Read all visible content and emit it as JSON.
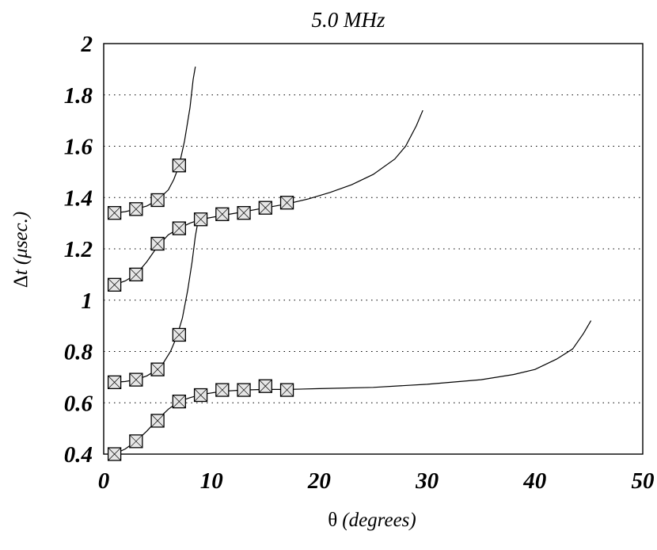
{
  "chart_data": {
    "type": "scatter",
    "title": "5.0 MHz",
    "xlabel": {
      "symbol": "θ",
      "text": "(degrees)"
    },
    "ylabel": {
      "symbol": "Δ",
      "var": "t",
      "unit": "(μsec.)"
    },
    "xlim": [
      0,
      50
    ],
    "ylim": [
      0.4,
      2
    ],
    "xticks": [
      "0",
      "10",
      "20",
      "30",
      "40",
      "50"
    ],
    "yticks": [
      "0.4",
      "0.6",
      "0.8",
      "1",
      "1.2",
      "1.4",
      "1.6",
      "1.8",
      "2"
    ],
    "grid": "horizontal-dotted",
    "series": [
      {
        "points": [
          [
            1,
            1.34
          ],
          [
            3,
            1.355
          ],
          [
            5,
            1.39
          ],
          [
            7,
            1.525
          ]
        ],
        "curve": [
          [
            1,
            1.34
          ],
          [
            2,
            1.345
          ],
          [
            3,
            1.355
          ],
          [
            4,
            1.367
          ],
          [
            5,
            1.39
          ],
          [
            6,
            1.43
          ],
          [
            6.5,
            1.47
          ],
          [
            7,
            1.525
          ],
          [
            7.5,
            1.62
          ],
          [
            8,
            1.75
          ],
          [
            8.3,
            1.86
          ],
          [
            8.5,
            1.91
          ]
        ]
      },
      {
        "points": [
          [
            1,
            1.06
          ],
          [
            3,
            1.1
          ],
          [
            5,
            1.22
          ],
          [
            7,
            1.28
          ],
          [
            9,
            1.315
          ],
          [
            11,
            1.335
          ],
          [
            13,
            1.34
          ],
          [
            15,
            1.36
          ],
          [
            17,
            1.38
          ]
        ],
        "curve": [
          [
            1,
            1.06
          ],
          [
            2,
            1.075
          ],
          [
            3,
            1.1
          ],
          [
            4,
            1.15
          ],
          [
            5,
            1.21
          ],
          [
            6,
            1.255
          ],
          [
            7,
            1.28
          ],
          [
            8,
            1.3
          ],
          [
            9,
            1.315
          ],
          [
            11,
            1.33
          ],
          [
            13,
            1.345
          ],
          [
            15,
            1.36
          ],
          [
            17,
            1.375
          ],
          [
            19,
            1.395
          ],
          [
            21,
            1.42
          ],
          [
            23,
            1.45
          ],
          [
            25,
            1.49
          ],
          [
            27,
            1.55
          ],
          [
            28,
            1.6
          ],
          [
            29,
            1.68
          ],
          [
            29.6,
            1.74
          ]
        ]
      },
      {
        "points": [
          [
            1,
            0.68
          ],
          [
            3,
            0.69
          ],
          [
            5,
            0.73
          ],
          [
            7,
            0.865
          ]
        ],
        "curve": [
          [
            1,
            0.68
          ],
          [
            2,
            0.683
          ],
          [
            3,
            0.69
          ],
          [
            4,
            0.705
          ],
          [
            5,
            0.73
          ],
          [
            5.6,
            0.76
          ],
          [
            6.2,
            0.8
          ],
          [
            6.8,
            0.86
          ],
          [
            7.3,
            0.93
          ],
          [
            7.8,
            1.04
          ],
          [
            8.2,
            1.15
          ],
          [
            8.5,
            1.25
          ],
          [
            8.8,
            1.32
          ]
        ]
      },
      {
        "points": [
          [
            1,
            0.4
          ],
          [
            3,
            0.45
          ],
          [
            5,
            0.53
          ],
          [
            7,
            0.605
          ],
          [
            9,
            0.63
          ],
          [
            11,
            0.65
          ],
          [
            13,
            0.65
          ],
          [
            15,
            0.665
          ],
          [
            17,
            0.65
          ]
        ],
        "curve": [
          [
            1,
            0.4
          ],
          [
            2,
            0.42
          ],
          [
            3,
            0.45
          ],
          [
            4,
            0.49
          ],
          [
            5,
            0.535
          ],
          [
            6,
            0.575
          ],
          [
            7,
            0.605
          ],
          [
            8,
            0.62
          ],
          [
            9,
            0.632
          ],
          [
            11,
            0.645
          ],
          [
            13,
            0.65
          ],
          [
            15,
            0.652
          ],
          [
            17,
            0.652
          ],
          [
            20,
            0.655
          ],
          [
            25,
            0.66
          ],
          [
            30,
            0.672
          ],
          [
            35,
            0.69
          ],
          [
            38,
            0.71
          ],
          [
            40,
            0.73
          ],
          [
            42,
            0.77
          ],
          [
            43.5,
            0.81
          ],
          [
            44.5,
            0.87
          ],
          [
            45.2,
            0.92
          ]
        ]
      }
    ]
  }
}
